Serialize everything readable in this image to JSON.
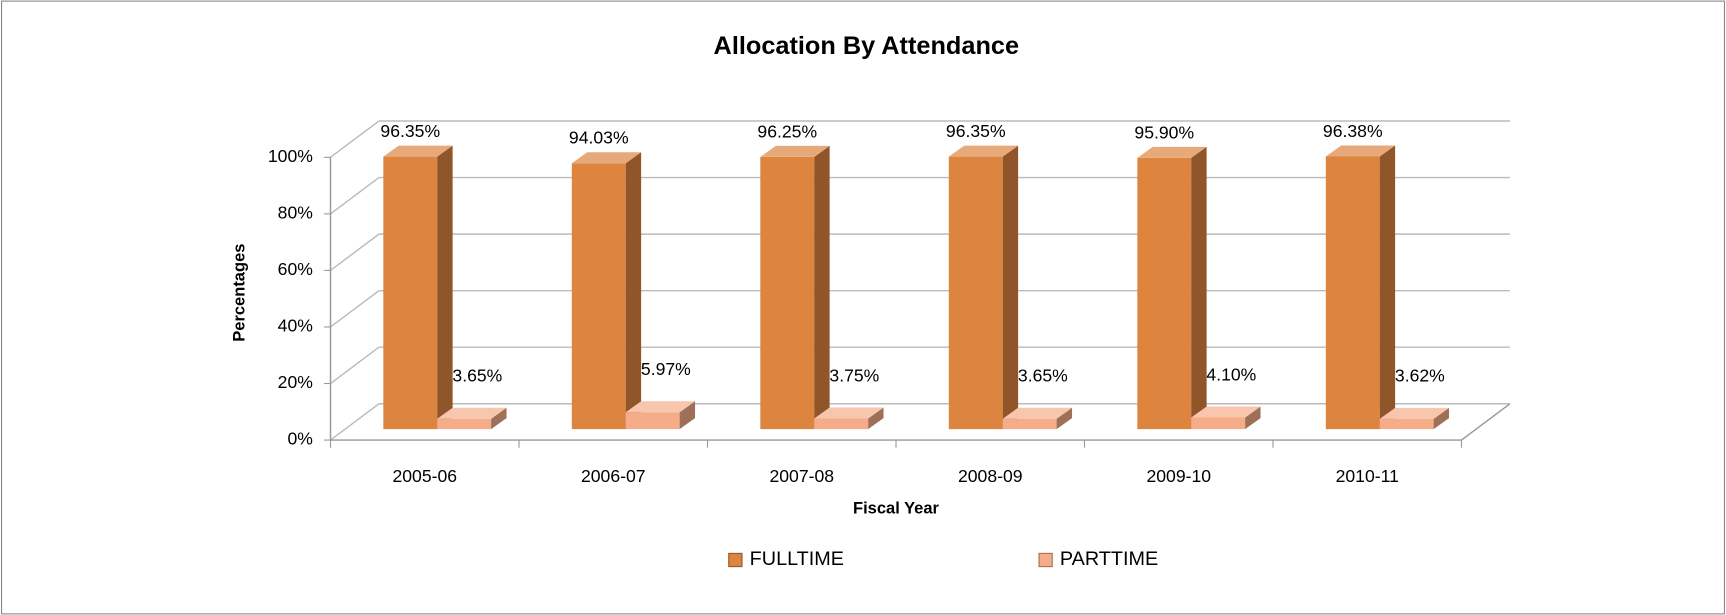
{
  "chart_data": {
    "type": "bar3d",
    "title": "Allocation By Attendance",
    "xlabel": "Fiscal Year",
    "ylabel": "Percentages",
    "categories": [
      "2005-06",
      "2006-07",
      "2007-08",
      "2008-09",
      "2009-10",
      "2010-11"
    ],
    "series": [
      {
        "name": "FULLTIME",
        "color": "#dd843f",
        "values": [
          96.35,
          94.03,
          96.25,
          96.35,
          95.9,
          96.38
        ],
        "value_labels": [
          "96.35%",
          "94.03%",
          "96.25%",
          "96.35%",
          "95.90%",
          "96.38%"
        ]
      },
      {
        "name": "PARTTIME",
        "color": "#f4ad88",
        "values": [
          3.65,
          5.97,
          3.75,
          3.65,
          4.1,
          3.62
        ],
        "value_labels": [
          "3.65%",
          "5.97%",
          "3.75%",
          "3.65%",
          "4.10%",
          "3.62%"
        ]
      }
    ],
    "ylim": [
      0,
      100
    ],
    "yticks": [
      {
        "value": 0,
        "label": "0%"
      },
      {
        "value": 20,
        "label": "20%"
      },
      {
        "value": 40,
        "label": "40%"
      },
      {
        "value": 60,
        "label": "60%"
      },
      {
        "value": 80,
        "label": "80%"
      },
      {
        "value": 100,
        "label": "100%"
      }
    ],
    "grid": true,
    "legend": "bottom"
  }
}
